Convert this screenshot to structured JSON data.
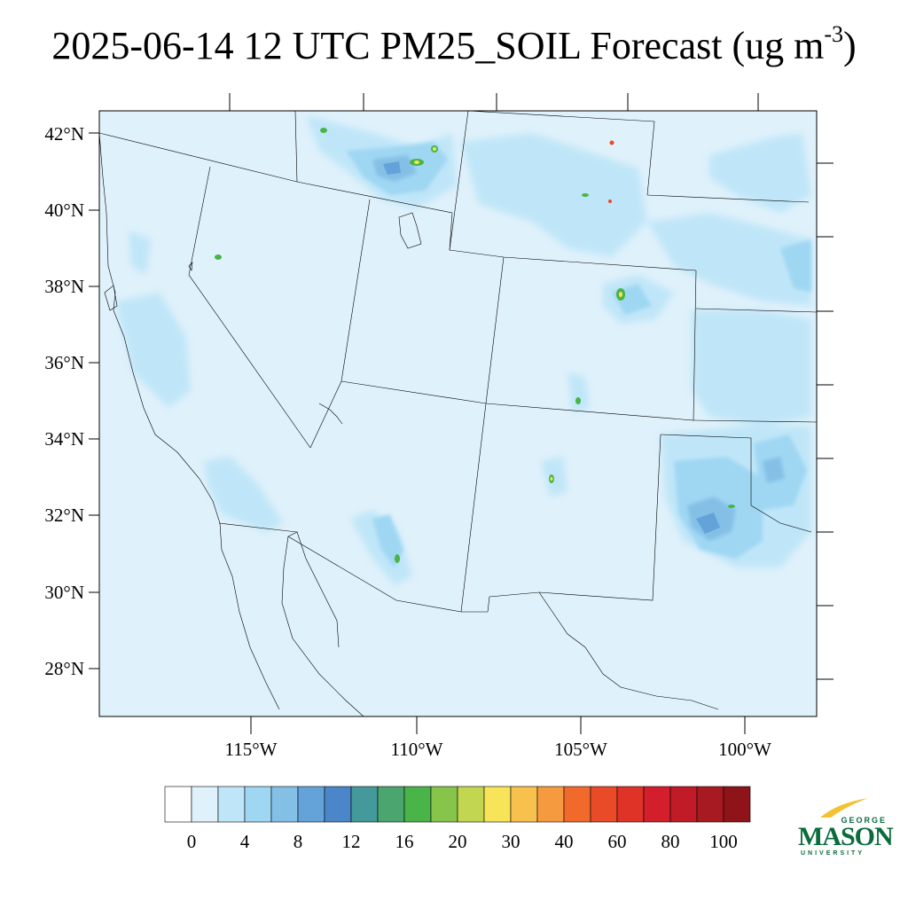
{
  "title": {
    "main": "2025-06-14 12 UTC PM25_SOIL Forecast (ug m",
    "exponent": "-3",
    "suffix": ")"
  },
  "map": {
    "lat_labels": [
      "42°N",
      "40°N",
      "38°N",
      "36°N",
      "34°N",
      "32°N",
      "30°N",
      "28°N"
    ],
    "lon_labels": [
      "115°W",
      "110°W",
      "105°W",
      "100°W"
    ],
    "background_color": "#dff1fb"
  },
  "colorbar": {
    "colors": [
      "#ffffff",
      "#dff1fb",
      "#bfe6f8",
      "#9fd7f3",
      "#84bfe6",
      "#64a3da",
      "#4a86c8",
      "#44999a",
      "#4aa66e",
      "#49b447",
      "#86c54a",
      "#c2d651",
      "#f7e458",
      "#f8c04d",
      "#f59a3e",
      "#f16a2c",
      "#e94a27",
      "#de3326",
      "#d21f2b",
      "#c01b26",
      "#a81a22",
      "#8f1419"
    ],
    "labels": [
      "0",
      "4",
      "8",
      "12",
      "16",
      "20",
      "30",
      "40",
      "60",
      "80",
      "100"
    ]
  },
  "logo": {
    "line1": "GEORGE",
    "line2": "MASON",
    "line3": "UNIVERSITY",
    "color": "#0a6b3b"
  }
}
